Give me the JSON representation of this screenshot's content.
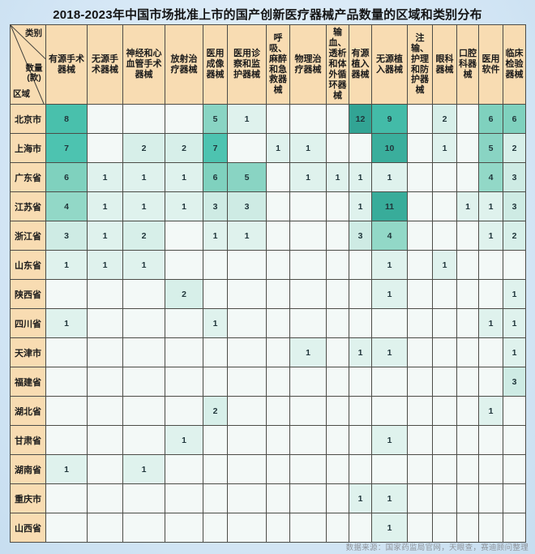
{
  "title": "2018-2023年中国市场批准上市的国产创新医疗器械产品数量的区域和类别分布",
  "corner": {
    "top_label": "类别",
    "middle_label": "数量(款)",
    "bottom_label": "区域"
  },
  "footer": "数据来源：国家药监局官网，天眼查，赛迪顾问整理",
  "colors": {
    "header_bg": "#f8dcb2",
    "empty_cell": "#f3f9f7",
    "grid_line": "#4c4c47",
    "heat_scale": {
      "1": "#dff2ed",
      "2": "#d7efe9",
      "3": "#ceebe4",
      "4": "#92d8c7",
      "5": "#89d4c3",
      "6": "#7fd1be",
      "7": "#4dc3b0",
      "8": "#49c0ac",
      "9": "#43bba8",
      "10": "#3aae9c",
      "11": "#38ac9a",
      "12": "#32a494"
    }
  },
  "chart_data": {
    "type": "heatmap",
    "title": "2018-2023年中国市场批准上市的国产创新医疗器械产品数量的区域和类别分布",
    "unit": "款",
    "columns": [
      "有源手术器械",
      "无源手术器械",
      "神经和心血管手术器械",
      "放射治疗器械",
      "医用成像器械",
      "医用诊察和监护器械",
      "呼吸、麻醉和急救器械",
      "物理治疗器械",
      "输血、透析和体外循环器械",
      "有源植入器械",
      "无源植入器械",
      "注输、护理和防护器械",
      "眼科器械",
      "口腔科器械",
      "医用软件",
      "临床检验器械"
    ],
    "rows": [
      "北京市",
      "上海市",
      "广东省",
      "江苏省",
      "浙江省",
      "山东省",
      "陕西省",
      "四川省",
      "天津市",
      "福建省",
      "湖北省",
      "甘肃省",
      "湖南省",
      "重庆市",
      "山西省"
    ],
    "values": [
      [
        8,
        null,
        null,
        null,
        5,
        1,
        null,
        null,
        null,
        12,
        9,
        null,
        2,
        null,
        6,
        6
      ],
      [
        7,
        null,
        2,
        2,
        7,
        null,
        1,
        1,
        null,
        null,
        10,
        null,
        1,
        null,
        5,
        2
      ],
      [
        6,
        1,
        1,
        1,
        6,
        5,
        null,
        1,
        1,
        1,
        1,
        null,
        null,
        null,
        4,
        3
      ],
      [
        4,
        1,
        1,
        1,
        3,
        3,
        null,
        null,
        null,
        1,
        11,
        null,
        null,
        1,
        1,
        3
      ],
      [
        3,
        1,
        2,
        null,
        1,
        1,
        null,
        null,
        null,
        3,
        4,
        null,
        null,
        null,
        1,
        2
      ],
      [
        1,
        1,
        1,
        null,
        null,
        null,
        null,
        null,
        null,
        null,
        1,
        null,
        1,
        null,
        null,
        null
      ],
      [
        null,
        null,
        null,
        2,
        null,
        null,
        null,
        null,
        null,
        null,
        1,
        null,
        null,
        null,
        null,
        1
      ],
      [
        1,
        null,
        null,
        null,
        1,
        null,
        null,
        null,
        null,
        null,
        null,
        null,
        null,
        null,
        1,
        1
      ],
      [
        null,
        null,
        null,
        null,
        null,
        null,
        null,
        1,
        null,
        1,
        1,
        null,
        null,
        null,
        null,
        1
      ],
      [
        null,
        null,
        null,
        null,
        null,
        null,
        null,
        null,
        null,
        null,
        null,
        null,
        null,
        null,
        null,
        3
      ],
      [
        null,
        null,
        null,
        null,
        2,
        null,
        null,
        null,
        null,
        null,
        null,
        null,
        null,
        null,
        1,
        null
      ],
      [
        null,
        null,
        null,
        1,
        null,
        null,
        null,
        null,
        null,
        null,
        1,
        null,
        null,
        null,
        null,
        null
      ],
      [
        1,
        null,
        1,
        null,
        null,
        null,
        null,
        null,
        null,
        null,
        null,
        null,
        null,
        null,
        null,
        null
      ],
      [
        null,
        null,
        null,
        null,
        null,
        null,
        null,
        null,
        null,
        1,
        1,
        null,
        null,
        null,
        null,
        null
      ],
      [
        null,
        null,
        null,
        null,
        null,
        null,
        null,
        null,
        null,
        null,
        1,
        null,
        null,
        null,
        null,
        null
      ]
    ]
  }
}
